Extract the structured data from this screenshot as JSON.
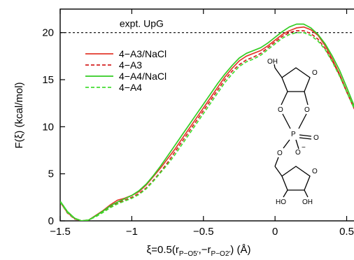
{
  "chart_data": {
    "type": "line",
    "xlabel_parts": {
      "prefix": "ξ=0.5(r",
      "sub1": "P−O5′",
      "mid": ",−r",
      "sub2": "P−O2′",
      "suffix": ") (Å)"
    },
    "ylabel": "F(ξ) (kcal/mol)",
    "xlim": [
      -1.5,
      0.6
    ],
    "ylim": [
      0,
      22.5
    ],
    "x_ticks": [
      -1.5,
      -1,
      -0.5,
      0,
      0.5
    ],
    "x_tick_labels": [
      "−1.5",
      "−1",
      "−0.5",
      "0",
      "0.5"
    ],
    "y_ticks": [
      0,
      5,
      10,
      15,
      20
    ],
    "y_tick_labels": [
      "0",
      "5",
      "10",
      "15",
      "20"
    ],
    "reference_line": {
      "y": 20,
      "label": "expt. UpG",
      "style": "dotted"
    },
    "legend_position": "upper-left",
    "x": [
      -1.5,
      -1.45,
      -1.4,
      -1.35,
      -1.3,
      -1.25,
      -1.2,
      -1.15,
      -1.1,
      -1.05,
      -1.0,
      -0.95,
      -0.9,
      -0.85,
      -0.8,
      -0.75,
      -0.7,
      -0.65,
      -0.6,
      -0.55,
      -0.5,
      -0.45,
      -0.4,
      -0.35,
      -0.3,
      -0.25,
      -0.2,
      -0.15,
      -0.1,
      -0.05,
      0.0,
      0.05,
      0.1,
      0.15,
      0.2,
      0.25,
      0.3,
      0.35,
      0.4,
      0.45,
      0.5,
      0.55,
      0.6
    ],
    "series": [
      {
        "name": "4−A3/NaCl",
        "color": "#e23a2c",
        "dash": "solid",
        "values": [
          2.0,
          0.9,
          0.25,
          0.0,
          0.1,
          0.6,
          1.1,
          1.7,
          2.2,
          2.4,
          2.7,
          3.1,
          3.8,
          4.7,
          5.6,
          6.6,
          7.6,
          8.7,
          9.8,
          10.9,
          12.0,
          13.1,
          14.2,
          15.3,
          16.2,
          17.0,
          17.5,
          17.8,
          18.1,
          18.6,
          19.2,
          19.8,
          20.2,
          20.5,
          20.6,
          20.3,
          19.7,
          18.6,
          17.2,
          15.6,
          13.8,
          12.0,
          10.5
        ]
      },
      {
        "name": "4−A3",
        "color": "#d42020",
        "dash": "dashed",
        "values": [
          2.0,
          0.85,
          0.2,
          0.0,
          0.1,
          0.5,
          1.0,
          1.5,
          1.9,
          2.2,
          2.5,
          2.9,
          3.5,
          4.3,
          5.2,
          6.2,
          7.3,
          8.4,
          9.5,
          10.6,
          11.7,
          12.8,
          13.9,
          15.0,
          15.9,
          16.6,
          17.1,
          17.4,
          17.8,
          18.4,
          19.0,
          19.6,
          20.0,
          20.2,
          20.2,
          19.9,
          19.3,
          18.3,
          17.0,
          15.5,
          13.7,
          12.0,
          10.5
        ]
      },
      {
        "name": "4−A4/NaCl",
        "color": "#33cc22",
        "dash": "solid",
        "values": [
          2.1,
          1.0,
          0.3,
          0.0,
          0.1,
          0.55,
          1.05,
          1.6,
          2.0,
          2.35,
          2.7,
          3.2,
          3.9,
          4.8,
          5.8,
          6.9,
          8.0,
          9.1,
          10.2,
          11.3,
          12.4,
          13.5,
          14.6,
          15.6,
          16.5,
          17.3,
          17.8,
          18.1,
          18.4,
          18.9,
          19.5,
          20.1,
          20.6,
          20.9,
          20.9,
          20.5,
          19.8,
          18.8,
          17.5,
          16.0,
          14.2,
          12.3,
          10.7
        ]
      },
      {
        "name": "4−A4",
        "color": "#44dd33",
        "dash": "dashed",
        "values": [
          2.0,
          0.9,
          0.25,
          0.0,
          0.1,
          0.45,
          0.9,
          1.4,
          1.8,
          2.1,
          2.4,
          2.8,
          3.4,
          4.2,
          5.1,
          6.0,
          7.0,
          8.1,
          9.2,
          10.3,
          11.4,
          12.5,
          13.6,
          14.7,
          15.6,
          16.4,
          16.9,
          17.2,
          17.6,
          18.2,
          18.8,
          19.4,
          19.8,
          20.0,
          20.0,
          19.7,
          19.1,
          18.2,
          16.9,
          15.4,
          13.7,
          12.0,
          10.5
        ]
      }
    ]
  },
  "molecule": {
    "labels": {
      "oh_top": "OH",
      "o1": "O",
      "o2": "O",
      "p": "P",
      "o_dbl": "O",
      "o_minus": "O",
      "minus": "−",
      "o_bridge": "O",
      "ho": "HO",
      "oh_bot": "OH"
    },
    "ring_oxygen_top": "O",
    "ring_oxygen_bottom": "O"
  }
}
